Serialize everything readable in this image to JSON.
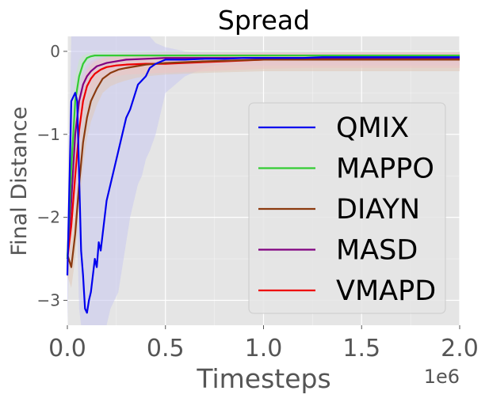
{
  "chart_data": {
    "type": "line",
    "title": "Spread",
    "xlabel": "Timesteps",
    "ylabel": "Final Distance",
    "x_offset_label": "1e6",
    "xlim": [
      0,
      2.0
    ],
    "ylim": [
      -3.3,
      0.18
    ],
    "x_ticks": [
      0.0,
      0.5,
      1.0,
      1.5,
      2.0
    ],
    "x_tick_labels": [
      "0.0",
      "0.5",
      "1.0",
      "1.5",
      "2.0"
    ],
    "y_ticks": [
      0,
      -1,
      -2,
      -3
    ],
    "y_tick_labels": [
      "0",
      "−1",
      "−2",
      "−3"
    ],
    "grid": true,
    "legend_position": "center-right",
    "series": [
      {
        "name": "QMIX",
        "color": "#0000ee",
        "band": "#c8c8f0",
        "x": [
          0,
          0.02,
          0.04,
          0.05,
          0.06,
          0.07,
          0.08,
          0.09,
          0.1,
          0.11,
          0.12,
          0.13,
          0.14,
          0.15,
          0.16,
          0.17,
          0.18,
          0.19,
          0.2,
          0.22,
          0.24,
          0.26,
          0.28,
          0.3,
          0.32,
          0.34,
          0.36,
          0.38,
          0.4,
          0.42,
          0.45,
          0.5,
          0.6,
          0.7,
          0.8,
          0.9,
          1.0,
          1.1,
          1.2,
          1.3,
          1.4,
          1.5,
          1.6,
          1.7,
          1.8,
          1.9,
          2.0
        ],
        "y": [
          -2.7,
          -0.6,
          -0.5,
          -0.6,
          -1.5,
          -2.4,
          -2.7,
          -3.1,
          -3.15,
          -3.0,
          -2.9,
          -2.7,
          -2.5,
          -2.6,
          -2.3,
          -2.4,
          -2.2,
          -2.0,
          -1.8,
          -1.6,
          -1.4,
          -1.2,
          -1.0,
          -0.8,
          -0.7,
          -0.55,
          -0.4,
          -0.35,
          -0.3,
          -0.2,
          -0.15,
          -0.1,
          -0.1,
          -0.09,
          -0.09,
          -0.08,
          -0.08,
          -0.08,
          -0.08,
          -0.07,
          -0.07,
          -0.07,
          -0.07,
          -0.07,
          -0.07,
          -0.07,
          -0.07
        ],
        "lower": [
          -3.3,
          -1.4,
          -1.3,
          -2.2,
          -3.1,
          -3.3,
          -3.3,
          -3.3,
          -3.3,
          -3.3,
          -3.3,
          -3.3,
          -3.3,
          -3.3,
          -3.3,
          -3.3,
          -3.3,
          -3.3,
          -3.3,
          -3.1,
          -3.0,
          -2.9,
          -2.6,
          -2.3,
          -2.0,
          -1.8,
          -1.6,
          -1.5,
          -1.3,
          -1.2,
          -1.0,
          -0.5,
          -0.3,
          -0.2,
          -0.15,
          -0.12,
          -0.1,
          -0.1,
          -0.1,
          -0.09,
          -0.09,
          -0.09,
          -0.09,
          -0.09,
          -0.09,
          -0.09,
          -0.09
        ],
        "upper": [
          -2.2,
          0.18,
          0.18,
          0.18,
          0.18,
          0.18,
          0.18,
          0.18,
          0.18,
          0.18,
          0.18,
          0.18,
          0.18,
          0.18,
          0.18,
          0.18,
          0.18,
          0.18,
          0.18,
          0.18,
          0.18,
          0.18,
          0.18,
          0.18,
          0.18,
          0.18,
          0.18,
          0.18,
          0.18,
          0.18,
          0.1,
          0.05,
          0.0,
          -0.02,
          -0.03,
          -0.04,
          -0.05,
          -0.05,
          -0.05,
          -0.05,
          -0.05,
          -0.05,
          -0.05,
          -0.05,
          -0.05,
          -0.05,
          -0.05
        ]
      },
      {
        "name": "MAPPO",
        "color": "#33cc33",
        "band": "#c6e8c6",
        "x": [
          0,
          0.02,
          0.04,
          0.06,
          0.08,
          0.1,
          0.12,
          0.14,
          0.16,
          0.2,
          0.3,
          0.5,
          0.7,
          1.0,
          1.3,
          1.6,
          2.0
        ],
        "y": [
          -2.5,
          -1.4,
          -0.6,
          -0.3,
          -0.15,
          -0.08,
          -0.06,
          -0.05,
          -0.05,
          -0.05,
          -0.05,
          -0.05,
          -0.05,
          -0.05,
          -0.05,
          -0.05,
          -0.05
        ],
        "lower": [
          -2.7,
          -1.7,
          -0.9,
          -0.5,
          -0.25,
          -0.14,
          -0.1,
          -0.09,
          -0.09,
          -0.09,
          -0.09,
          -0.09,
          -0.09,
          -0.09,
          -0.09,
          -0.09,
          -0.09
        ],
        "upper": [
          -2.3,
          -1.1,
          -0.3,
          -0.1,
          -0.05,
          -0.03,
          -0.02,
          -0.01,
          -0.01,
          -0.01,
          -0.01,
          0.0,
          0.0,
          0.0,
          0.0,
          0.0,
          0.0
        ]
      },
      {
        "name": "DIAYN",
        "color": "#8b3a0f",
        "band": "#e0c8b8",
        "x": [
          0,
          0.02,
          0.04,
          0.06,
          0.08,
          0.1,
          0.12,
          0.15,
          0.18,
          0.22,
          0.26,
          0.3,
          0.35,
          0.4,
          0.5,
          0.7,
          1.0,
          1.3,
          1.6,
          2.0
        ],
        "y": [
          -2.45,
          -2.6,
          -2.2,
          -1.6,
          -1.1,
          -0.8,
          -0.6,
          -0.45,
          -0.33,
          -0.26,
          -0.22,
          -0.2,
          -0.18,
          -0.16,
          -0.14,
          -0.12,
          -0.1,
          -0.1,
          -0.1,
          -0.1
        ],
        "lower": [
          -2.7,
          -2.85,
          -2.5,
          -1.9,
          -1.4,
          -1.05,
          -0.85,
          -0.65,
          -0.5,
          -0.42,
          -0.38,
          -0.35,
          -0.32,
          -0.3,
          -0.28,
          -0.26,
          -0.24,
          -0.24,
          -0.24,
          -0.24
        ],
        "upper": [
          -2.2,
          -2.35,
          -1.9,
          -1.3,
          -0.8,
          -0.55,
          -0.38,
          -0.25,
          -0.17,
          -0.12,
          -0.09,
          -0.07,
          -0.06,
          -0.05,
          -0.04,
          -0.03,
          -0.02,
          -0.02,
          -0.02,
          -0.02
        ]
      },
      {
        "name": "MASD",
        "color": "#800080",
        "band": "#dcc4dc",
        "x": [
          0,
          0.02,
          0.04,
          0.06,
          0.08,
          0.1,
          0.12,
          0.15,
          0.2,
          0.25,
          0.3,
          0.4,
          0.5,
          0.7,
          1.0,
          1.3,
          1.6,
          2.0
        ],
        "y": [
          -2.5,
          -1.8,
          -1.0,
          -0.6,
          -0.4,
          -0.3,
          -0.24,
          -0.18,
          -0.14,
          -0.12,
          -0.1,
          -0.09,
          -0.08,
          -0.08,
          -0.08,
          -0.08,
          -0.08,
          -0.08
        ],
        "lower": [
          -2.7,
          -2.05,
          -1.25,
          -0.82,
          -0.58,
          -0.45,
          -0.38,
          -0.3,
          -0.25,
          -0.22,
          -0.2,
          -0.18,
          -0.17,
          -0.17,
          -0.17,
          -0.17,
          -0.17,
          -0.17
        ],
        "upper": [
          -2.3,
          -1.55,
          -0.75,
          -0.4,
          -0.24,
          -0.16,
          -0.12,
          -0.08,
          -0.05,
          -0.04,
          -0.03,
          -0.02,
          -0.01,
          -0.01,
          -0.01,
          -0.01,
          -0.01,
          -0.01
        ]
      },
      {
        "name": "VMAPD",
        "color": "#ee0000",
        "band": "#ecc4c4",
        "x": [
          0,
          0.02,
          0.04,
          0.06,
          0.08,
          0.1,
          0.12,
          0.14,
          0.17,
          0.2,
          0.25,
          0.3,
          0.4,
          0.5,
          0.6,
          0.8,
          1.0,
          1.2,
          1.4,
          1.6,
          1.8,
          2.0
        ],
        "y": [
          -2.5,
          -2.1,
          -1.5,
          -0.95,
          -0.6,
          -0.42,
          -0.33,
          -0.27,
          -0.22,
          -0.19,
          -0.17,
          -0.16,
          -0.15,
          -0.15,
          -0.14,
          -0.12,
          -0.1,
          -0.1,
          -0.09,
          -0.09,
          -0.09,
          -0.08
        ],
        "lower": [
          -2.75,
          -2.4,
          -1.8,
          -1.25,
          -0.85,
          -0.62,
          -0.5,
          -0.42,
          -0.36,
          -0.33,
          -0.3,
          -0.28,
          -0.27,
          -0.26,
          -0.25,
          -0.23,
          -0.21,
          -0.2,
          -0.2,
          -0.2,
          -0.2,
          -0.2
        ],
        "upper": [
          -2.25,
          -1.8,
          -1.2,
          -0.65,
          -0.35,
          -0.22,
          -0.16,
          -0.12,
          -0.09,
          -0.07,
          -0.06,
          -0.05,
          -0.04,
          -0.04,
          -0.04,
          -0.03,
          -0.02,
          -0.02,
          -0.01,
          -0.01,
          -0.01,
          -0.01
        ]
      }
    ]
  }
}
